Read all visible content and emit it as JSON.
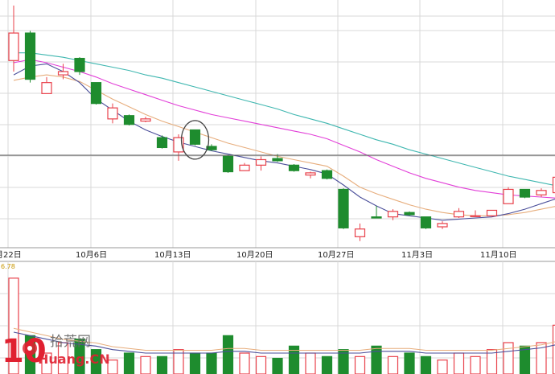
{
  "colors": {
    "up": "#e8404a",
    "down": "#1e8c2e",
    "ma_short": "#4b4f9a",
    "ma_mid": "#e7ad7c",
    "ma_long": "#e23fd8",
    "ma_xlong": "#3fb7b0",
    "grid": "#d8d8d8",
    "crosshair": "#555555",
    "annotation": "#444444",
    "volume_label": "#c89600"
  },
  "watermark": {
    "logo_number": "10",
    "text_cn": "拾荒网",
    "text_en": "Huang.CN"
  },
  "volume_panel": {
    "label": "6.78"
  },
  "chart_data": {
    "type": "candlestick",
    "x_tick_labels": [
      "月22日",
      "10月6日",
      "10月13日",
      "10月20日",
      "10月27日",
      "11月3日",
      "11月10日"
    ],
    "annotation": "circled candle near 10月13日",
    "candles": [
      {
        "o": 8.15,
        "h": 8.65,
        "l": 8.05,
        "c": 8.4,
        "up": true
      },
      {
        "o": 8.4,
        "h": 8.42,
        "l": 7.95,
        "c": 7.98,
        "up": false
      },
      {
        "o": 7.85,
        "h": 8.0,
        "l": 7.85,
        "c": 7.95,
        "up": true
      },
      {
        "o": 8.02,
        "h": 8.12,
        "l": 7.98,
        "c": 8.05,
        "up": true
      },
      {
        "o": 8.17,
        "h": 8.18,
        "l": 8.02,
        "c": 8.05,
        "up": false
      },
      {
        "o": 7.95,
        "h": 7.95,
        "l": 7.75,
        "c": 7.76,
        "up": false
      },
      {
        "o": 7.62,
        "h": 7.76,
        "l": 7.58,
        "c": 7.72,
        "up": true
      },
      {
        "o": 7.65,
        "h": 7.66,
        "l": 7.56,
        "c": 7.57,
        "up": false
      },
      {
        "o": 7.6,
        "h": 7.64,
        "l": 7.59,
        "c": 7.62,
        "up": true
      },
      {
        "o": 7.45,
        "h": 7.47,
        "l": 7.35,
        "c": 7.36,
        "up": false
      },
      {
        "o": 7.32,
        "h": 7.48,
        "l": 7.24,
        "c": 7.45,
        "up": true
      },
      {
        "o": 7.52,
        "h": 7.52,
        "l": 7.38,
        "c": 7.39,
        "up": false
      },
      {
        "o": 7.37,
        "h": 7.39,
        "l": 7.33,
        "c": 7.34,
        "up": false
      },
      {
        "o": 7.28,
        "h": 7.29,
        "l": 7.13,
        "c": 7.14,
        "up": false
      },
      {
        "o": 7.15,
        "h": 7.22,
        "l": 7.15,
        "c": 7.2,
        "up": true
      },
      {
        "o": 7.2,
        "h": 7.28,
        "l": 7.15,
        "c": 7.25,
        "up": true
      },
      {
        "o": 7.26,
        "h": 7.3,
        "l": 7.23,
        "c": 7.24,
        "up": false
      },
      {
        "o": 7.2,
        "h": 7.21,
        "l": 7.14,
        "c": 7.15,
        "up": false
      },
      {
        "o": 7.11,
        "h": 7.14,
        "l": 7.08,
        "c": 7.13,
        "up": true
      },
      {
        "o": 7.15,
        "h": 7.16,
        "l": 7.07,
        "c": 7.08,
        "up": false
      },
      {
        "o": 6.98,
        "h": 6.99,
        "l": 6.62,
        "c": 6.63,
        "up": false
      },
      {
        "o": 6.55,
        "h": 6.67,
        "l": 6.51,
        "c": 6.62,
        "up": true
      },
      {
        "o": 6.72,
        "h": 6.83,
        "l": 6.72,
        "c": 6.73,
        "up": false
      },
      {
        "o": 6.73,
        "h": 6.8,
        "l": 6.7,
        "c": 6.78,
        "up": true
      },
      {
        "o": 6.77,
        "h": 6.78,
        "l": 6.74,
        "c": 6.75,
        "up": false
      },
      {
        "o": 6.73,
        "h": 6.73,
        "l": 6.62,
        "c": 6.63,
        "up": false
      },
      {
        "o": 6.64,
        "h": 6.69,
        "l": 6.62,
        "c": 6.67,
        "up": true
      },
      {
        "o": 6.73,
        "h": 6.81,
        "l": 6.72,
        "c": 6.78,
        "up": true
      },
      {
        "o": 6.74,
        "h": 6.79,
        "l": 6.73,
        "c": 6.74,
        "up": true
      },
      {
        "o": 6.74,
        "h": 6.79,
        "l": 6.73,
        "c": 6.79,
        "up": true
      },
      {
        "o": 6.85,
        "h": 7.0,
        "l": 6.85,
        "c": 6.98,
        "up": true
      },
      {
        "o": 6.98,
        "h": 6.98,
        "l": 6.9,
        "c": 6.91,
        "up": false
      },
      {
        "o": 6.93,
        "h": 6.99,
        "l": 6.91,
        "c": 6.97,
        "up": true
      },
      {
        "o": 6.95,
        "h": 7.14,
        "l": 6.94,
        "c": 7.09,
        "up": true
      }
    ],
    "ma_short": [
      8.02,
      8.1,
      8.12,
      8.05,
      7.95,
      7.8,
      7.7,
      7.6,
      7.52,
      7.46,
      7.41,
      7.37,
      7.33,
      7.3,
      7.27,
      7.24,
      7.22,
      7.19,
      7.16,
      7.12,
      7.02,
      6.91,
      6.83,
      6.76,
      6.74,
      6.72,
      6.7,
      6.71,
      6.72,
      6.73,
      6.76,
      6.8,
      6.85,
      6.9
    ],
    "ma_mid": [
      7.97,
      8.0,
      8.02,
      8.0,
      7.96,
      7.88,
      7.8,
      7.73,
      7.66,
      7.6,
      7.55,
      7.5,
      7.45,
      7.4,
      7.36,
      7.32,
      7.28,
      7.25,
      7.22,
      7.19,
      7.1,
      7.0,
      6.94,
      6.89,
      6.84,
      6.8,
      6.77,
      6.75,
      6.74,
      6.74,
      6.75,
      6.77,
      6.8,
      6.83
    ],
    "ma_long": [
      8.13,
      8.16,
      8.13,
      8.09,
      8.05,
      8.0,
      7.94,
      7.89,
      7.84,
      7.79,
      7.74,
      7.7,
      7.66,
      7.63,
      7.6,
      7.57,
      7.54,
      7.51,
      7.48,
      7.44,
      7.38,
      7.32,
      7.25,
      7.19,
      7.13,
      7.08,
      7.04,
      7.0,
      6.97,
      6.95,
      6.93,
      6.92,
      6.91,
      6.9
    ],
    "ma_xlong": [
      8.22,
      8.22,
      8.2,
      8.18,
      8.15,
      8.12,
      8.09,
      8.06,
      8.02,
      7.99,
      7.95,
      7.91,
      7.87,
      7.83,
      7.79,
      7.75,
      7.71,
      7.66,
      7.62,
      7.58,
      7.53,
      7.48,
      7.43,
      7.39,
      7.34,
      7.3,
      7.26,
      7.22,
      7.18,
      7.14,
      7.1,
      7.07,
      7.04,
      7.01
    ],
    "volume": [
      55,
      22,
      12,
      18,
      20,
      14,
      8,
      12,
      10,
      10,
      14,
      12,
      12,
      22,
      12,
      10,
      9,
      16,
      12,
      10,
      14,
      10,
      16,
      10,
      12,
      10,
      8,
      12,
      10,
      14,
      18,
      16,
      18,
      28
    ],
    "volume_ma": [
      24,
      22,
      20,
      18,
      17,
      16,
      14,
      13,
      12,
      12,
      12,
      12,
      12,
      13,
      13,
      12,
      12,
      12,
      12,
      12,
      12,
      12,
      13,
      13,
      13,
      12,
      12,
      12,
      12,
      12,
      13,
      14,
      15,
      17
    ],
    "price_range": [
      6.45,
      8.7
    ],
    "volume_range": [
      0,
      60
    ],
    "grid": true
  }
}
